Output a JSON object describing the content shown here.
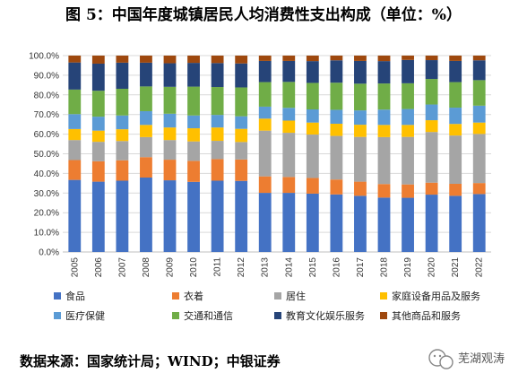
{
  "chart_data": {
    "type": "bar",
    "stacked": true,
    "title": "图 5：中国年度城镇居民人均消费性支出构成（单位：%）",
    "categories": [
      "2005",
      "2006",
      "2007",
      "2008",
      "2009",
      "2010",
      "2011",
      "2012",
      "2013",
      "2014",
      "2015",
      "2016",
      "2017",
      "2018",
      "2019",
      "2020",
      "2021",
      "2022"
    ],
    "ylim": [
      0,
      100
    ],
    "yticks": [
      "0.0%",
      "10.0%",
      "20.0%",
      "30.0%",
      "40.0%",
      "50.0%",
      "60.0%",
      "70.0%",
      "80.0%",
      "90.0%",
      "100.0%"
    ],
    "grid": true,
    "legend_position": "bottom",
    "series": [
      {
        "name": "食品",
        "color": "#4472c4",
        "values": [
          36.7,
          35.8,
          36.3,
          37.9,
          36.5,
          35.7,
          36.3,
          36.2,
          30.1,
          30.1,
          29.7,
          29.3,
          28.6,
          27.7,
          27.6,
          29.2,
          28.6,
          29.5
        ]
      },
      {
        "name": "衣着",
        "color": "#ed7d31",
        "values": [
          10.1,
          10.4,
          10.4,
          10.4,
          10.5,
          10.7,
          11.0,
          10.9,
          8.4,
          8.1,
          8.0,
          7.6,
          7.2,
          6.9,
          6.8,
          6.1,
          6.1,
          5.6
        ]
      },
      {
        "name": "居住",
        "color": "#a5a5a5",
        "values": [
          10.2,
          9.9,
          9.8,
          10.2,
          10.0,
          9.9,
          9.3,
          8.9,
          23.3,
          22.5,
          22.1,
          22.2,
          22.8,
          23.9,
          24.2,
          25.8,
          24.6,
          25.0
        ]
      },
      {
        "name": "家庭设备用品及服务",
        "color": "#ffc000",
        "values": [
          5.6,
          5.7,
          6.0,
          6.2,
          6.4,
          6.7,
          6.8,
          6.7,
          6.1,
          6.2,
          6.1,
          6.2,
          6.2,
          6.2,
          6.1,
          6.0,
          5.9,
          5.8
        ]
      },
      {
        "name": "医疗保健",
        "color": "#5b9bd5",
        "values": [
          7.6,
          7.1,
          7.0,
          7.0,
          7.0,
          6.5,
          6.4,
          6.4,
          6.1,
          6.5,
          6.7,
          7.1,
          7.3,
          7.8,
          8.1,
          8.0,
          8.3,
          8.6
        ]
      },
      {
        "name": "交通和通信",
        "color": "#70ad47",
        "values": [
          12.5,
          13.2,
          13.6,
          12.6,
          13.7,
          14.7,
          14.2,
          14.7,
          12.5,
          13.2,
          13.5,
          13.8,
          13.6,
          13.3,
          13.1,
          13.0,
          13.0,
          13.0
        ]
      },
      {
        "name": "教育文化娱乐服务",
        "color": "#264478",
        "values": [
          13.8,
          13.8,
          13.3,
          12.1,
          12.0,
          12.1,
          12.2,
          12.2,
          10.8,
          10.7,
          11.1,
          11.4,
          11.6,
          11.4,
          11.9,
          9.6,
          10.8,
          10.1
        ]
      },
      {
        "name": "其他商品和服务",
        "color": "#9e480e",
        "values": [
          3.5,
          4.1,
          3.6,
          3.6,
          3.9,
          3.7,
          3.8,
          4.0,
          2.7,
          2.7,
          2.8,
          2.4,
          2.7,
          2.8,
          2.2,
          2.3,
          2.7,
          2.4
        ]
      }
    ]
  },
  "source_text": "数据来源：国家统计局；WIND；中银证券",
  "watermark": {
    "icon": "wechat-icon",
    "text": "芜湖观涛"
  }
}
